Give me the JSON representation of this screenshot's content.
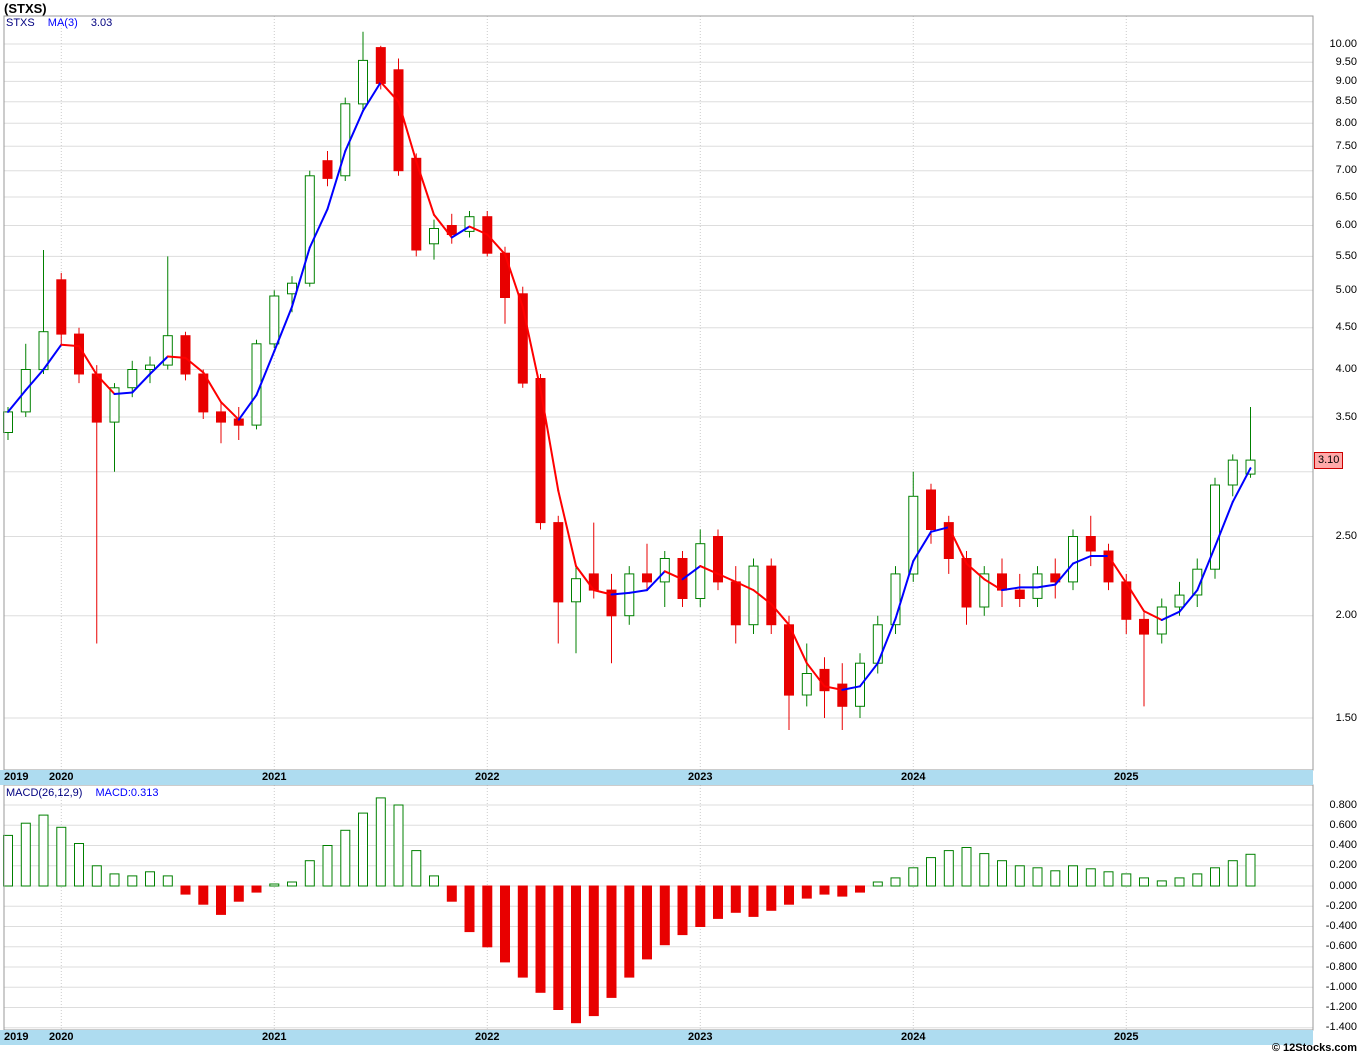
{
  "title": "(STXS)",
  "price_panel": {
    "legend": {
      "symbol": "STXS",
      "ma_label": "MA(3)",
      "ma_value": "3.03"
    },
    "y_axis_labels": [
      "10.00",
      "9.50",
      "9.00",
      "8.50",
      "8.00",
      "7.50",
      "7.00",
      "6.50",
      "6.00",
      "5.50",
      "5.00",
      "4.50",
      "4.00",
      "3.50",
      "2.50",
      "2.00",
      "1.50"
    ],
    "last_price_badge": "3.10"
  },
  "macd_panel": {
    "legend": {
      "label": "MACD(26,12,9)",
      "value_label": "MACD:0.313"
    },
    "y_axis_labels": [
      "0.800",
      "0.600",
      "0.400",
      "0.200",
      "0.000",
      "-0.200",
      "-0.400",
      "-0.600",
      "-0.800",
      "-1.000",
      "-1.200",
      "-1.400"
    ]
  },
  "x_axis": {
    "years": [
      "2019",
      "2020",
      "2021",
      "2022",
      "2023",
      "2024",
      "2025"
    ]
  },
  "footer": {
    "copyright": "© 12Stocks.com"
  },
  "colors": {
    "candle_up_border": "#008000",
    "candle_up_fill": "#ffffff",
    "candle_down": "#e80000",
    "ma_up": "#0000ff",
    "ma_down": "#ff0000",
    "grid": "#dddddd",
    "grid_vertical": "#cccccc",
    "panel_border": "#999999",
    "band_bg": "#aedcf0",
    "badge_bg": "#ffaaaa",
    "badge_border": "#cc0000",
    "macd_pos_border": "#008000",
    "macd_pos_fill": "#ffffff",
    "macd_neg": "#e80000"
  },
  "chart_data": {
    "type": "candlestick+macd-histogram",
    "title": "(STXS)",
    "symbol": "STXS",
    "interval": "monthly",
    "price_scale": "log",
    "price_ylim": [
      1.4,
      10.5
    ],
    "macd_ylim": [
      -1.45,
      0.9
    ],
    "ma_period": 3,
    "ma_last": 3.03,
    "macd_params": "26,12,9",
    "macd_last": 0.313,
    "last_close": 3.1,
    "columns": [
      "month",
      "open",
      "high",
      "low",
      "close",
      "macd_histogram"
    ],
    "candles": [
      [
        "2019-10",
        3.35,
        3.6,
        3.28,
        3.55,
        0.5
      ],
      [
        "2019-11",
        3.55,
        4.3,
        3.5,
        4.0,
        0.62
      ],
      [
        "2019-12",
        4.0,
        5.6,
        3.95,
        4.45,
        0.7
      ],
      [
        "2020-01",
        5.15,
        5.25,
        4.3,
        4.42,
        0.58
      ],
      [
        "2020-02",
        4.42,
        4.5,
        3.85,
        3.95,
        0.42
      ],
      [
        "2020-03",
        3.95,
        4.05,
        1.85,
        3.45,
        0.2
      ],
      [
        "2020-04",
        3.45,
        3.85,
        3.0,
        3.8,
        0.12
      ],
      [
        "2020-05",
        3.8,
        4.1,
        3.7,
        4.0,
        0.1
      ],
      [
        "2020-06",
        4.0,
        4.15,
        3.85,
        4.05,
        0.14
      ],
      [
        "2020-07",
        4.05,
        5.5,
        4.0,
        4.4,
        0.1
      ],
      [
        "2020-08",
        4.4,
        4.45,
        3.88,
        3.95,
        -0.08
      ],
      [
        "2020-09",
        3.95,
        4.0,
        3.48,
        3.55,
        -0.18
      ],
      [
        "2020-10",
        3.55,
        3.65,
        3.25,
        3.45,
        -0.28
      ],
      [
        "2020-11",
        3.48,
        3.6,
        3.28,
        3.42,
        -0.15
      ],
      [
        "2020-12",
        3.42,
        4.35,
        3.38,
        4.3,
        -0.06
      ],
      [
        "2021-01",
        4.3,
        5.0,
        4.25,
        4.92,
        0.02
      ],
      [
        "2021-02",
        4.95,
        5.2,
        4.7,
        5.1,
        0.04
      ],
      [
        "2021-03",
        5.1,
        7.0,
        5.05,
        6.9,
        0.25
      ],
      [
        "2021-04",
        7.2,
        7.4,
        6.7,
        6.85,
        0.4
      ],
      [
        "2021-05",
        6.9,
        8.6,
        6.8,
        8.45,
        0.55
      ],
      [
        "2021-06",
        8.45,
        10.35,
        8.3,
        9.55,
        0.72
      ],
      [
        "2021-07",
        9.9,
        9.95,
        8.8,
        8.95,
        0.87
      ],
      [
        "2021-08",
        9.3,
        9.6,
        6.9,
        7.0,
        0.8
      ],
      [
        "2021-09",
        7.25,
        7.35,
        5.5,
        5.6,
        0.35
      ],
      [
        "2021-10",
        5.7,
        6.1,
        5.45,
        5.95,
        0.1
      ],
      [
        "2021-11",
        6.0,
        6.2,
        5.7,
        5.85,
        -0.15
      ],
      [
        "2021-12",
        5.9,
        6.25,
        5.8,
        6.15,
        -0.45
      ],
      [
        "2022-01",
        6.15,
        6.25,
        5.5,
        5.55,
        -0.6
      ],
      [
        "2022-02",
        5.55,
        5.65,
        4.55,
        4.9,
        -0.75
      ],
      [
        "2022-03",
        4.95,
        5.05,
        3.8,
        3.85,
        -0.9
      ],
      [
        "2022-04",
        3.9,
        3.95,
        2.55,
        2.6,
        -1.05
      ],
      [
        "2022-05",
        2.6,
        2.65,
        1.85,
        2.08,
        -1.22
      ],
      [
        "2022-06",
        2.08,
        2.3,
        1.8,
        2.22,
        -1.35
      ],
      [
        "2022-07",
        2.25,
        2.6,
        2.1,
        2.15,
        -1.28
      ],
      [
        "2022-08",
        2.15,
        2.25,
        1.75,
        2.0,
        -1.1
      ],
      [
        "2022-09",
        2.0,
        2.3,
        1.95,
        2.25,
        -0.9
      ],
      [
        "2022-10",
        2.25,
        2.45,
        2.15,
        2.2,
        -0.72
      ],
      [
        "2022-11",
        2.2,
        2.4,
        2.05,
        2.35,
        -0.58
      ],
      [
        "2022-12",
        2.35,
        2.4,
        2.05,
        2.1,
        -0.48
      ],
      [
        "2023-01",
        2.1,
        2.55,
        2.05,
        2.45,
        -0.4
      ],
      [
        "2023-02",
        2.5,
        2.55,
        2.15,
        2.2,
        -0.32
      ],
      [
        "2023-03",
        2.2,
        2.3,
        1.85,
        1.95,
        -0.26
      ],
      [
        "2023-04",
        1.95,
        2.35,
        1.9,
        2.3,
        -0.3
      ],
      [
        "2023-05",
        2.3,
        2.35,
        1.9,
        1.95,
        -0.24
      ],
      [
        "2023-06",
        1.95,
        2.0,
        1.45,
        1.6,
        -0.18
      ],
      [
        "2023-07",
        1.6,
        1.85,
        1.55,
        1.7,
        -0.12
      ],
      [
        "2023-08",
        1.72,
        1.78,
        1.5,
        1.62,
        -0.08
      ],
      [
        "2023-09",
        1.65,
        1.75,
        1.45,
        1.55,
        -0.1
      ],
      [
        "2023-10",
        1.55,
        1.8,
        1.5,
        1.75,
        -0.06
      ],
      [
        "2023-11",
        1.75,
        2.0,
        1.7,
        1.95,
        0.04
      ],
      [
        "2023-12",
        1.95,
        2.3,
        1.9,
        2.25,
        0.08
      ],
      [
        "2024-01",
        2.25,
        3.0,
        2.2,
        2.8,
        0.18
      ],
      [
        "2024-02",
        2.85,
        2.9,
        2.45,
        2.55,
        0.28
      ],
      [
        "2024-03",
        2.6,
        2.65,
        2.25,
        2.35,
        0.35
      ],
      [
        "2024-04",
        2.35,
        2.4,
        1.95,
        2.05,
        0.38
      ],
      [
        "2024-05",
        2.05,
        2.3,
        2.0,
        2.25,
        0.32
      ],
      [
        "2024-06",
        2.25,
        2.35,
        2.05,
        2.15,
        0.25
      ],
      [
        "2024-07",
        2.15,
        2.25,
        2.05,
        2.1,
        0.2
      ],
      [
        "2024-08",
        2.1,
        2.3,
        2.05,
        2.25,
        0.18
      ],
      [
        "2024-09",
        2.25,
        2.35,
        2.1,
        2.2,
        0.15
      ],
      [
        "2024-10",
        2.2,
        2.55,
        2.15,
        2.5,
        0.2
      ],
      [
        "2024-11",
        2.5,
        2.65,
        2.3,
        2.4,
        0.17
      ],
      [
        "2024-12",
        2.4,
        2.45,
        2.15,
        2.2,
        0.14
      ],
      [
        "2025-01",
        2.2,
        2.25,
        1.9,
        1.98,
        0.12
      ],
      [
        "2025-02",
        1.98,
        2.02,
        1.55,
        1.9,
        0.08
      ],
      [
        "2025-03",
        1.9,
        2.1,
        1.85,
        2.05,
        0.05
      ],
      [
        "2025-04",
        2.05,
        2.2,
        2.0,
        2.12,
        0.08
      ],
      [
        "2025-05",
        2.12,
        2.35,
        2.05,
        2.28,
        0.12
      ],
      [
        "2025-06",
        2.28,
        2.95,
        2.22,
        2.89,
        0.18
      ],
      [
        "2025-07",
        2.89,
        3.15,
        2.8,
        3.1,
        0.25
      ],
      [
        "2025-08",
        2.98,
        3.6,
        2.95,
        3.1,
        0.313
      ]
    ]
  }
}
